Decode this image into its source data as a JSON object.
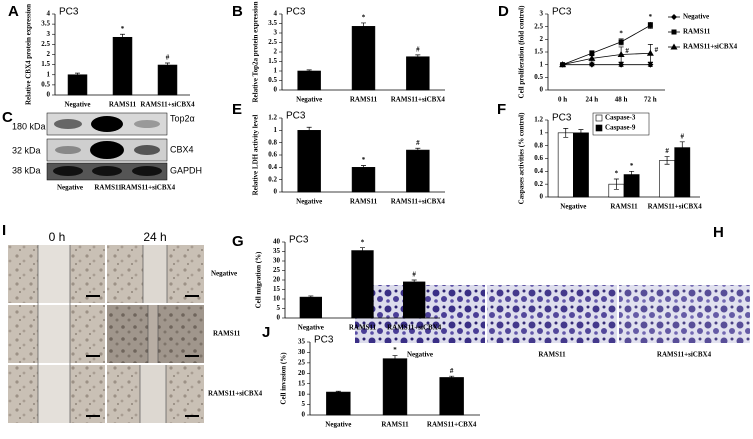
{
  "chart_data": [
    {
      "type": "bar",
      "letter": "A",
      "title": "PC3",
      "ylabel": "Relative CBX4 protein expression",
      "categories": [
        "Negative",
        "RAMS11",
        "RAMS11+siCBX4"
      ],
      "values": [
        1.0,
        2.85,
        1.48
      ],
      "errors": [
        0.08,
        0.15,
        0.1
      ],
      "markers": [
        null,
        "*",
        "#"
      ],
      "color": "#000000",
      "ylim": [
        0,
        4
      ],
      "yticks": [
        0,
        0.5,
        1,
        1.5,
        2,
        2.5,
        3,
        3.5,
        4
      ]
    },
    {
      "type": "bar",
      "letter": "B",
      "title": "PC3",
      "ylabel": "Relative Top2a protein expression",
      "categories": [
        "Negative",
        "RAMS11",
        "RAMS11+siCBX4"
      ],
      "values": [
        1.0,
        3.35,
        1.75
      ],
      "errors": [
        0.06,
        0.18,
        0.1
      ],
      "markers": [
        null,
        "*",
        "#"
      ],
      "color": "#000000",
      "ylim": [
        0,
        4
      ],
      "yticks": [
        0,
        0.5,
        1,
        1.5,
        2,
        2.5,
        3,
        3.5,
        4
      ]
    },
    {
      "type": "line",
      "letter": "D",
      "title": "PC3",
      "ylabel": "Cell proliferation (fold control)",
      "categories": [
        "0 h",
        "24 h",
        "48 h",
        "72 h"
      ],
      "ylim": [
        0,
        3
      ],
      "yticks": [
        0,
        0.5,
        1,
        1.5,
        2,
        2.5,
        3
      ],
      "series": [
        {
          "name": "Negative",
          "color": "#000000",
          "marker": "diamond",
          "values": [
            1,
            1,
            1,
            1
          ],
          "errors": [
            0.05,
            0.05,
            0.08,
            0.08
          ],
          "markers": [
            null,
            null,
            null,
            null
          ]
        },
        {
          "name": "RAMS11",
          "color": "#000000",
          "marker": "square",
          "values": [
            1,
            1.45,
            1.9,
            2.55
          ],
          "errors": [
            0.05,
            0.1,
            0.12,
            0.12
          ],
          "markers": [
            null,
            null,
            "*",
            "*"
          ]
        },
        {
          "name": "RAMS11+siCBX4",
          "color": "#000000",
          "marker": "triangle",
          "values": [
            1,
            1.25,
            1.4,
            1.45
          ],
          "errors": [
            0.05,
            0.15,
            0.3,
            0.35
          ],
          "markers": [
            null,
            null,
            "#",
            "#"
          ]
        }
      ]
    },
    {
      "type": "bar",
      "letter": "E",
      "title": "PC3",
      "ylabel": "Relative LDH activity level",
      "categories": [
        "Negative",
        "RAMS11",
        "RAMS11+siCBX4"
      ],
      "values": [
        1.0,
        0.4,
        0.68
      ],
      "errors": [
        0.05,
        0.03,
        0.03
      ],
      "markers": [
        null,
        "*",
        "#"
      ],
      "color": "#000000",
      "ylim": [
        0,
        1.2
      ],
      "yticks": [
        0,
        0.2,
        0.4,
        0.6,
        0.8,
        1,
        1.2
      ]
    },
    {
      "type": "bar",
      "letter": "F",
      "title": "PC3",
      "ylabel": "Caspases activities (% control)",
      "categories": [
        "Negative",
        "RAMS11",
        "RAMS11+siCBX4"
      ],
      "ylim": [
        0,
        1.2
      ],
      "yticks": [
        0,
        0.2,
        0.4,
        0.6,
        0.8,
        1,
        1.2
      ],
      "series": [
        {
          "name": "Caspase-3",
          "color": "#ffffff",
          "values": [
            1.0,
            0.2,
            0.57
          ],
          "errors": [
            0.07,
            0.08,
            0.06
          ],
          "markers": [
            null,
            "*",
            "#"
          ]
        },
        {
          "name": "Caspase-9",
          "color": "#000000",
          "values": [
            1.0,
            0.35,
            0.77
          ],
          "errors": [
            0.05,
            0.05,
            0.09
          ],
          "markers": [
            null,
            "*",
            "#"
          ]
        }
      ]
    },
    {
      "type": "bar",
      "letter": "G",
      "title": "PC3",
      "ylabel": "Cell migration (%)",
      "categories": [
        "Negative",
        "RAMS11",
        "RAMS11+siCBX4"
      ],
      "values": [
        11,
        35.5,
        19
      ],
      "errors": [
        0.6,
        1.5,
        1
      ],
      "markers": [
        null,
        "*",
        "#"
      ],
      "color": "#000000",
      "ylim": [
        0,
        40
      ],
      "yticks": [
        0,
        5,
        10,
        15,
        20,
        25,
        30,
        35,
        40
      ]
    },
    {
      "type": "bar",
      "letter": "J",
      "title": "PC3",
      "ylabel": "Cell invasion (%)",
      "categories": [
        "Negative",
        "RAMS11",
        "RAMS11+CBX4"
      ],
      "values": [
        11,
        27,
        18
      ],
      "errors": [
        0.4,
        1.5,
        0.6
      ],
      "markers": [
        null,
        "*",
        "#"
      ],
      "color": "#000000",
      "ylim": [
        0,
        35
      ],
      "yticks": [
        0,
        5,
        10,
        15,
        20,
        25,
        30,
        35
      ]
    }
  ],
  "blot": {
    "letter": "C",
    "sizes": [
      "180 kDa",
      "32 kDa",
      "38 kDa"
    ],
    "proteins": [
      "Top2α",
      "CBX4",
      "GAPDH"
    ],
    "lanes": [
      "Negative",
      "RAMS11",
      "RAMS11+siCBX4"
    ]
  },
  "wound": {
    "letter": "I",
    "times": [
      "0 h",
      "24 h"
    ],
    "rows": [
      "Negative",
      "RAMS11",
      "RAMS11+siCBX4"
    ]
  },
  "transwell": {
    "letter": "H",
    "labels": [
      "Negative",
      "RAMS11",
      "RAMS11+siCBX4"
    ]
  }
}
